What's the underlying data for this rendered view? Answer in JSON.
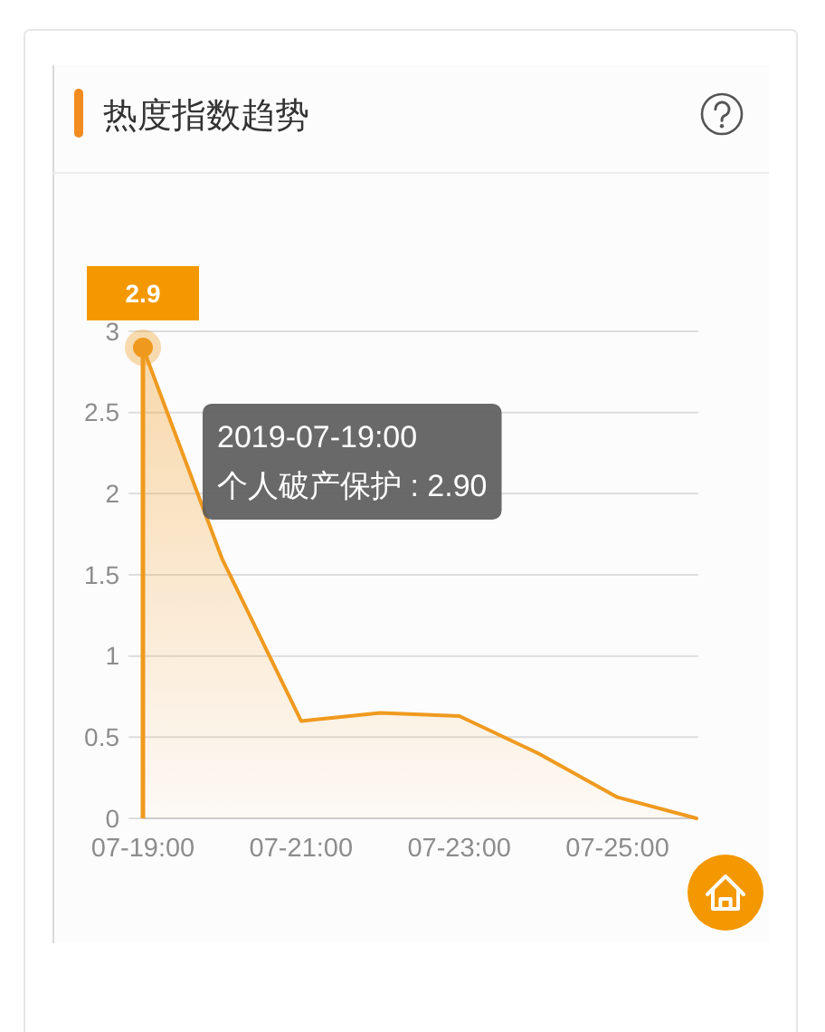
{
  "chart_data": {
    "type": "area",
    "title": "热度指数趋势",
    "categories": [
      "07-19:00",
      null,
      "07-21:00",
      null,
      "07-23:00",
      null,
      "07-25:00",
      null
    ],
    "values": [
      2.9,
      1.6,
      0.6,
      0.65,
      0.63,
      0.4,
      0.13,
      0
    ],
    "color": "#ef9a1f",
    "value_labels": [
      "2.9",
      null,
      null,
      null,
      null,
      null,
      null,
      null
    ],
    "annotations": [
      "2019-07-19:00",
      "个人破产保护 : 2.90"
    ],
    "ylim": [
      0,
      3
    ],
    "yticks": [
      0,
      0.5,
      1,
      1.5,
      2,
      2.5,
      3
    ],
    "grid": "y"
  }
}
